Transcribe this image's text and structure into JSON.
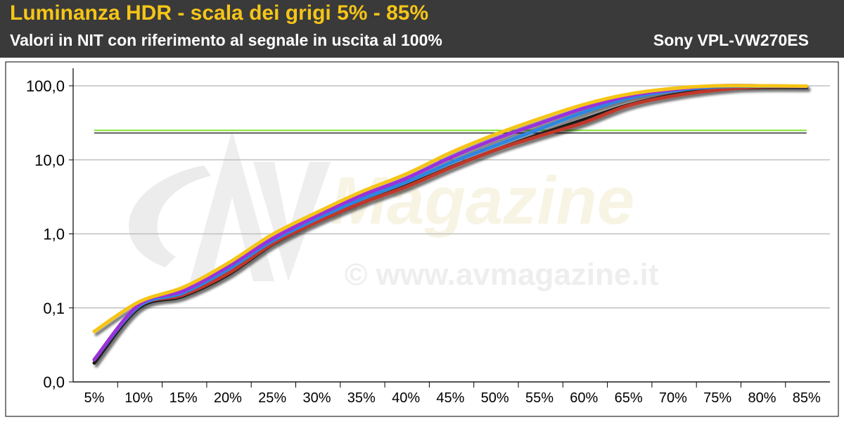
{
  "header": {
    "title": "Luminanza HDR - scala dei grigi 5% - 85%",
    "subtitle": "Valori in NIT con riferimento al segnale in uscita al 100%",
    "model": "Sony VPL-VW270ES"
  },
  "watermark": {
    "logo": "AV Magazine",
    "url": "© www.avmagazine.it"
  },
  "colors": {
    "header_bg": "#3a3a3a",
    "title": "#f5c518",
    "grid": "#c0c0c0",
    "reference_green": "#7fe030",
    "reference_gray": "#606060"
  },
  "chart_data": {
    "type": "line",
    "title": "Luminanza HDR - scala dei grigi 5% - 85%",
    "subtitle": "Valori in NIT con riferimento al segnale in uscita al 100%",
    "y_scale": "log",
    "ylim": [
      0.01,
      100
    ],
    "y_ticks": [
      {
        "value": 0.01,
        "label": "0,0"
      },
      {
        "value": 0.1,
        "label": "0,1"
      },
      {
        "value": 1,
        "label": "1,0"
      },
      {
        "value": 10,
        "label": "10,0"
      },
      {
        "value": 100,
        "label": "100,0"
      }
    ],
    "categories": [
      "5%",
      "10%",
      "15%",
      "20%",
      "25%",
      "30%",
      "35%",
      "40%",
      "45%",
      "50%",
      "55%",
      "60%",
      "65%",
      "70%",
      "75%",
      "80%",
      "85%"
    ],
    "grid": true,
    "reference_lines": [
      {
        "value": 25,
        "color": "#7fe030"
      },
      {
        "value": 23,
        "color": "#606060"
      }
    ],
    "series": [
      {
        "color": "#1a1a1a",
        "values": [
          0.018,
          0.1,
          0.145,
          0.28,
          0.72,
          1.45,
          2.6,
          4.4,
          7.9,
          13.5,
          22,
          35,
          55,
          75,
          90,
          95,
          95
        ]
      },
      {
        "color": "#c0392b",
        "values": [
          0.02,
          0.105,
          0.15,
          0.29,
          0.73,
          1.45,
          2.6,
          4.3,
          7.8,
          13.5,
          21,
          32,
          54,
          73,
          88,
          97,
          98
        ]
      },
      {
        "color": "#2e86de",
        "values": [
          0.02,
          0.105,
          0.16,
          0.33,
          0.8,
          1.6,
          2.95,
          5.0,
          9.1,
          15.5,
          26,
          44,
          68,
          86,
          97,
          99,
          98
        ]
      },
      {
        "color": "#9b30d9",
        "values": [
          0.02,
          0.11,
          0.17,
          0.36,
          0.86,
          1.75,
          3.3,
          5.6,
          10.7,
          19,
          31,
          50,
          73,
          89,
          100,
          100,
          98
        ]
      },
      {
        "color": "#f5c518",
        "values": [
          0.048,
          0.12,
          0.19,
          0.4,
          0.98,
          1.95,
          3.7,
          6.4,
          12.5,
          22,
          36,
          56,
          77,
          92,
          100,
          100,
          99
        ]
      }
    ]
  }
}
